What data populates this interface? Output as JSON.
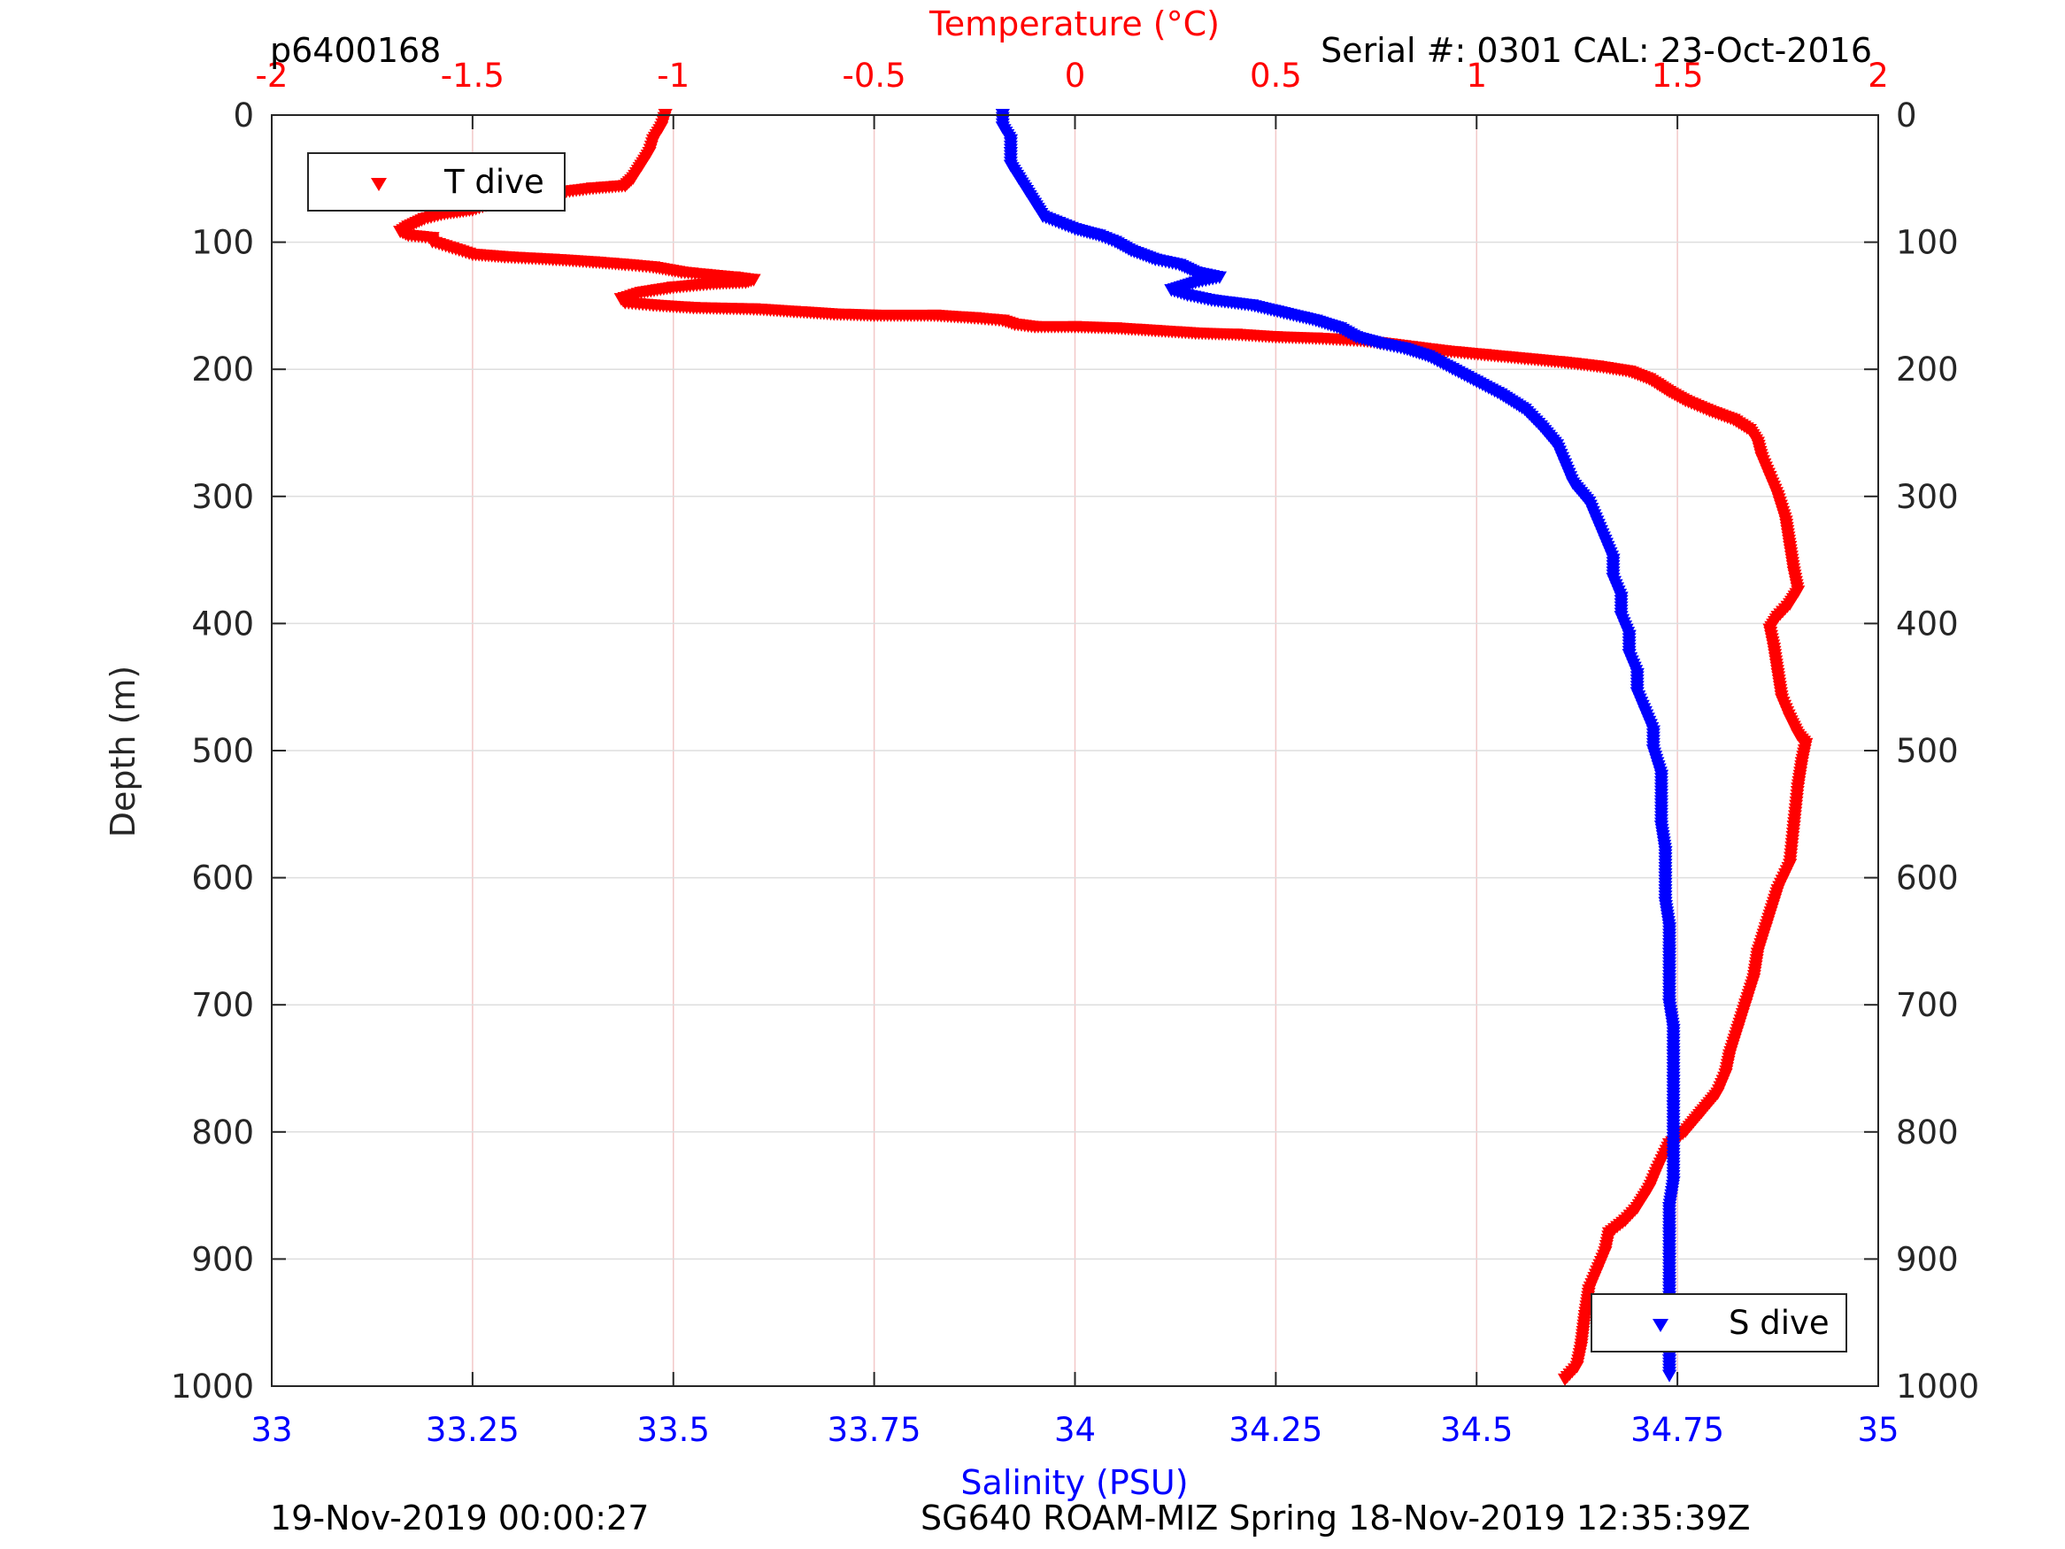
{
  "header": {
    "profile_id": "p6400168",
    "serial_info": "Serial #: 0301  CAL: 23-Oct-2016"
  },
  "footer": {
    "left_timestamp": "19-Nov-2019 00:00:27",
    "right_caption": "SG640 ROAM-MIZ Spring 18-Nov-2019 12:35:39Z"
  },
  "colors": {
    "temperature": "#ff0000",
    "salinity": "#0000ff",
    "axis": "#262626",
    "grid_temperature": "#f2c8c8",
    "grid_depth": "#dedede"
  },
  "chart_data": {
    "type": "scatter",
    "marker": "downward-triangle",
    "grid": true,
    "y_axis": {
      "label": "Depth (m)",
      "range": [
        0,
        1000
      ],
      "reversed": true,
      "ticks": [
        0,
        100,
        200,
        300,
        400,
        500,
        600,
        700,
        800,
        900,
        1000
      ],
      "tick_labels": [
        "0",
        "100",
        "200",
        "300",
        "400",
        "500",
        "600",
        "700",
        "800",
        "900",
        "1000"
      ]
    },
    "x_top_axis": {
      "label": "Temperature (°C)",
      "range": [
        -2,
        2
      ],
      "ticks": [
        -2,
        -1.5,
        -1,
        -0.5,
        0,
        0.5,
        1,
        1.5,
        2
      ],
      "tick_labels": [
        "-2",
        "-1.5",
        "-1",
        "-0.5",
        "0",
        "0.5",
        "1",
        "1.5",
        "2"
      ]
    },
    "x_bottom_axis": {
      "label": "Salinity (PSU)",
      "range": [
        33,
        35
      ],
      "ticks": [
        33,
        33.25,
        33.5,
        33.75,
        34,
        34.25,
        34.5,
        34.75,
        35
      ],
      "tick_labels": [
        "33",
        "33.25",
        "33.5",
        "33.75",
        "34",
        "34.25",
        "34.5",
        "34.75",
        "35"
      ]
    },
    "series": [
      {
        "name": "T dive",
        "axis": "top",
        "legend_position": "top-left",
        "points": [
          [
            -1.02,
            0
          ],
          [
            -1.03,
            10
          ],
          [
            -1.05,
            20
          ],
          [
            -1.06,
            30
          ],
          [
            -1.08,
            40
          ],
          [
            -1.1,
            50
          ],
          [
            -1.12,
            56
          ],
          [
            -1.2,
            58
          ],
          [
            -1.3,
            62
          ],
          [
            -1.38,
            66
          ],
          [
            -1.45,
            70
          ],
          [
            -1.5,
            75
          ],
          [
            -1.57,
            78
          ],
          [
            -1.62,
            82
          ],
          [
            -1.66,
            88
          ],
          [
            -1.68,
            92
          ],
          [
            -1.66,
            95
          ],
          [
            -1.6,
            97
          ],
          [
            -1.6,
            100
          ],
          [
            -1.55,
            105
          ],
          [
            -1.5,
            110
          ],
          [
            -1.42,
            112
          ],
          [
            -1.3,
            114
          ],
          [
            -1.2,
            116
          ],
          [
            -1.12,
            118
          ],
          [
            -1.05,
            120
          ],
          [
            -0.98,
            124
          ],
          [
            -0.92,
            126
          ],
          [
            -0.85,
            128
          ],
          [
            -0.8,
            130
          ],
          [
            -0.82,
            132
          ],
          [
            -0.9,
            133
          ],
          [
            -1.0,
            136
          ],
          [
            -1.08,
            140
          ],
          [
            -1.13,
            145
          ],
          [
            -1.12,
            148
          ],
          [
            -1.05,
            150
          ],
          [
            -0.95,
            152
          ],
          [
            -0.8,
            153
          ],
          [
            -0.7,
            155
          ],
          [
            -0.6,
            157
          ],
          [
            -0.5,
            158
          ],
          [
            -0.35,
            158
          ],
          [
            -0.25,
            160
          ],
          [
            -0.18,
            162
          ],
          [
            -0.15,
            165
          ],
          [
            -0.1,
            167
          ],
          [
            0.0,
            167
          ],
          [
            0.1,
            168
          ],
          [
            0.2,
            170
          ],
          [
            0.3,
            172
          ],
          [
            0.4,
            173
          ],
          [
            0.5,
            175
          ],
          [
            0.6,
            176
          ],
          [
            0.72,
            178
          ],
          [
            0.82,
            182
          ],
          [
            0.92,
            186
          ],
          [
            1.02,
            189
          ],
          [
            1.12,
            192
          ],
          [
            1.22,
            195
          ],
          [
            1.3,
            198
          ],
          [
            1.38,
            202
          ],
          [
            1.43,
            208
          ],
          [
            1.45,
            212
          ],
          [
            1.48,
            218
          ],
          [
            1.52,
            225
          ],
          [
            1.58,
            233
          ],
          [
            1.64,
            240
          ],
          [
            1.68,
            248
          ],
          [
            1.7,
            258
          ],
          [
            1.71,
            270
          ],
          [
            1.73,
            285
          ],
          [
            1.75,
            300
          ],
          [
            1.77,
            320
          ],
          [
            1.78,
            340
          ],
          [
            1.79,
            360
          ],
          [
            1.8,
            375
          ],
          [
            1.78,
            385
          ],
          [
            1.75,
            395
          ],
          [
            1.73,
            405
          ],
          [
            1.74,
            420
          ],
          [
            1.75,
            440
          ],
          [
            1.76,
            460
          ],
          [
            1.78,
            475
          ],
          [
            1.8,
            488
          ],
          [
            1.82,
            495
          ],
          [
            1.81,
            510
          ],
          [
            1.8,
            530
          ],
          [
            1.79,
            560
          ],
          [
            1.78,
            590
          ],
          [
            1.75,
            610
          ],
          [
            1.72,
            640
          ],
          [
            1.7,
            660
          ],
          [
            1.69,
            680
          ],
          [
            1.67,
            700
          ],
          [
            1.65,
            720
          ],
          [
            1.63,
            740
          ],
          [
            1.62,
            755
          ],
          [
            1.6,
            770
          ],
          [
            1.56,
            785
          ],
          [
            1.52,
            800
          ],
          [
            1.48,
            810
          ],
          [
            1.45,
            830
          ],
          [
            1.43,
            845
          ],
          [
            1.4,
            860
          ],
          [
            1.37,
            870
          ],
          [
            1.33,
            880
          ],
          [
            1.32,
            895
          ],
          [
            1.3,
            910
          ],
          [
            1.28,
            925
          ],
          [
            1.27,
            945
          ],
          [
            1.26,
            970
          ],
          [
            1.25,
            985
          ],
          [
            1.22,
            995
          ]
        ]
      },
      {
        "name": "S dive",
        "axis": "bottom",
        "legend_position": "bottom-right",
        "points": [
          [
            33.91,
            0
          ],
          [
            33.91,
            10
          ],
          [
            33.92,
            20
          ],
          [
            33.92,
            30
          ],
          [
            33.92,
            40
          ],
          [
            33.93,
            50
          ],
          [
            33.94,
            60
          ],
          [
            33.95,
            70
          ],
          [
            33.96,
            80
          ],
          [
            33.98,
            85
          ],
          [
            34.0,
            90
          ],
          [
            34.03,
            95
          ],
          [
            34.05,
            100
          ],
          [
            34.07,
            107
          ],
          [
            34.1,
            114
          ],
          [
            34.13,
            118
          ],
          [
            34.15,
            124
          ],
          [
            34.18,
            128
          ],
          [
            34.15,
            132
          ],
          [
            34.12,
            138
          ],
          [
            34.14,
            142
          ],
          [
            34.17,
            146
          ],
          [
            34.22,
            150
          ],
          [
            34.26,
            156
          ],
          [
            34.3,
            162
          ],
          [
            34.33,
            168
          ],
          [
            34.35,
            175
          ],
          [
            34.38,
            180
          ],
          [
            34.41,
            184
          ],
          [
            34.44,
            190
          ],
          [
            34.47,
            200
          ],
          [
            34.5,
            210
          ],
          [
            34.53,
            220
          ],
          [
            34.56,
            232
          ],
          [
            34.58,
            245
          ],
          [
            34.6,
            260
          ],
          [
            34.61,
            275
          ],
          [
            34.62,
            290
          ],
          [
            34.64,
            305
          ],
          [
            34.65,
            320
          ],
          [
            34.66,
            335
          ],
          [
            34.67,
            350
          ],
          [
            34.67,
            365
          ],
          [
            34.68,
            380
          ],
          [
            34.68,
            395
          ],
          [
            34.69,
            410
          ],
          [
            34.69,
            425
          ],
          [
            34.7,
            440
          ],
          [
            34.7,
            455
          ],
          [
            34.71,
            470
          ],
          [
            34.72,
            485
          ],
          [
            34.72,
            500
          ],
          [
            34.73,
            520
          ],
          [
            34.73,
            540
          ],
          [
            34.73,
            560
          ],
          [
            34.735,
            580
          ],
          [
            34.735,
            600
          ],
          [
            34.735,
            620
          ],
          [
            34.74,
            640
          ],
          [
            34.74,
            660
          ],
          [
            34.74,
            680
          ],
          [
            34.74,
            700
          ],
          [
            34.745,
            720
          ],
          [
            34.745,
            740
          ],
          [
            34.745,
            760
          ],
          [
            34.745,
            780
          ],
          [
            34.745,
            800
          ],
          [
            34.745,
            820
          ],
          [
            34.745,
            840
          ],
          [
            34.74,
            860
          ],
          [
            34.74,
            880
          ],
          [
            34.74,
            900
          ],
          [
            34.74,
            920
          ],
          [
            34.74,
            940
          ],
          [
            34.74,
            960
          ],
          [
            34.74,
            980
          ],
          [
            34.74,
            992
          ]
        ]
      }
    ]
  }
}
